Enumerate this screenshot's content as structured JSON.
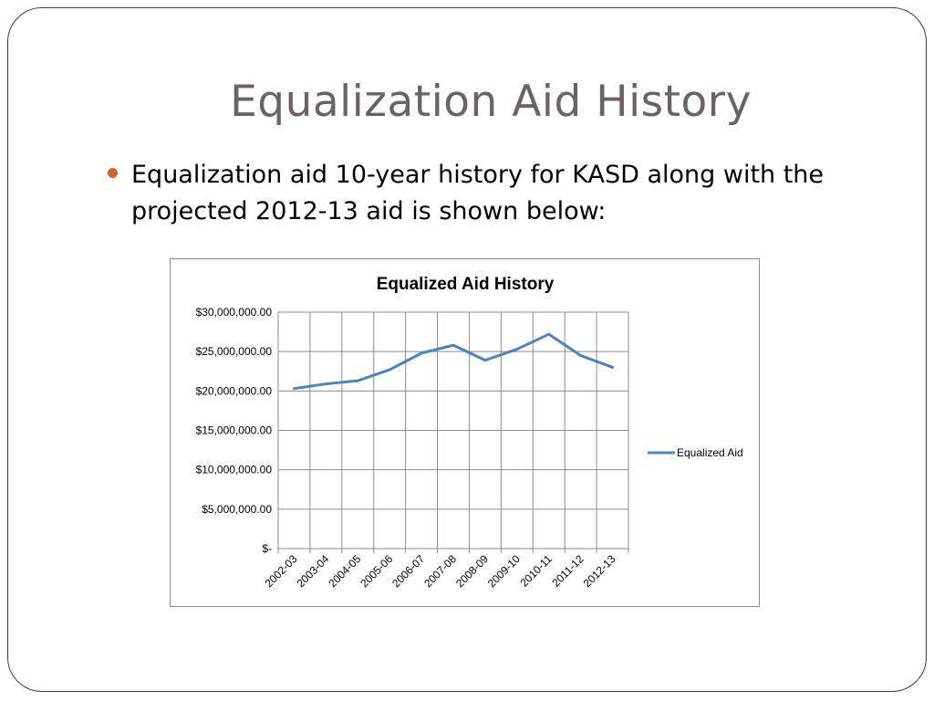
{
  "slide": {
    "title": "Equalization Aid History",
    "bullet": "Equalization aid 10-year history for KASD along with the projected 2012-13 aid is shown below:"
  },
  "colors": {
    "title": "#6b6262",
    "bullet": "#d4612b",
    "series": "#4f81bd",
    "grid": "#8c8c8c"
  },
  "chart_data": {
    "type": "line",
    "title": "Equalized Aid History",
    "xlabel": "",
    "ylabel": "",
    "categories": [
      "2002-03",
      "2003-04",
      "2004-05",
      "2005-06",
      "2006-07",
      "2007-08",
      "2008-09",
      "2009-10",
      "2010-11",
      "2011-12",
      "2012-13"
    ],
    "series": [
      {
        "name": "Equalized Aid",
        "values": [
          20300000,
          20900000,
          21300000,
          22700000,
          24800000,
          25800000,
          23900000,
          25300000,
          27200000,
          24500000,
          23000000
        ]
      }
    ],
    "ylim": [
      0,
      30000000
    ],
    "yticks": [
      0,
      5000000,
      10000000,
      15000000,
      20000000,
      25000000,
      30000000
    ],
    "ytick_labels": [
      "$-",
      "$5,000,000.00",
      "$10,000,000.00",
      "$15,000,000.00",
      "$20,000,000.00",
      "$25,000,000.00",
      "$30,000,000.00"
    ],
    "grid": true,
    "legend": "right"
  }
}
